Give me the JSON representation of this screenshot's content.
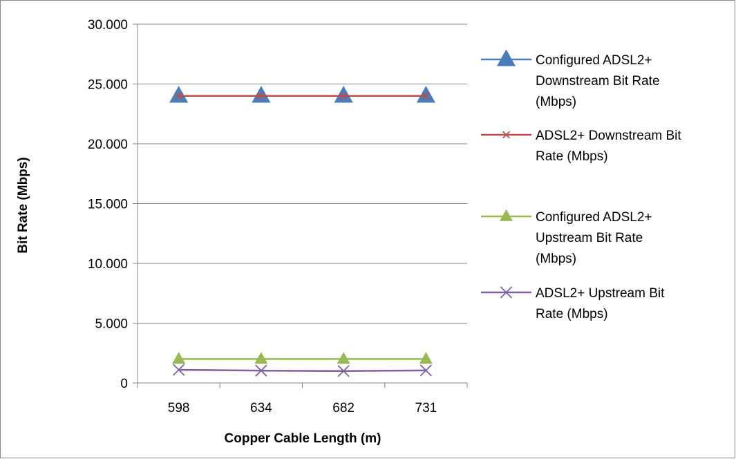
{
  "chart_data": {
    "type": "line",
    "title": "",
    "xlabel": "Copper Cable Length (m)",
    "ylabel": "Bit Rate (Mbps)",
    "categories": [
      "598",
      "634",
      "682",
      "731"
    ],
    "ylim": [
      0,
      30
    ],
    "y_ticks": [
      "0",
      "5.000",
      "10.000",
      "15.000",
      "20.000",
      "25.000",
      "30.000"
    ],
    "y_tick_values": [
      0,
      5,
      10,
      15,
      20,
      25,
      30
    ],
    "grid": "horizontal major gridlines",
    "legend_position": "right",
    "series": [
      {
        "name": "Configured ADSL2+ Downstream Bit Rate (Mbps)",
        "legend_lines": [
          "Configured ADSL2+",
          "Downstream Bit Rate",
          "(Mbps)"
        ],
        "values": [
          24.0,
          24.0,
          24.0,
          24.0
        ],
        "color": "#4a7ebb",
        "marker": "triangle"
      },
      {
        "name": "ADSL2+ Downstream Bit Rate (Mbps)",
        "legend_lines": [
          "ADSL2+ Downstream Bit",
          "Rate (Mbps)"
        ],
        "values": [
          24.0,
          24.0,
          24.0,
          24.0
        ],
        "color": "#be4b48",
        "marker": "x"
      },
      {
        "name": "Configured ADSL2+ Upstream Bit Rate (Mbps)",
        "legend_lines": [
          "Configured ADSL2+",
          "Upstream Bit Rate",
          "(Mbps)"
        ],
        "values": [
          2.0,
          2.0,
          2.0,
          2.0
        ],
        "color": "#98b954",
        "marker": "triangle"
      },
      {
        "name": "ADSL2+ Upstream Bit Rate (Mbps)",
        "legend_lines": [
          "ADSL2+ Upstream Bit",
          "Rate (Mbps)"
        ],
        "values": [
          1.1,
          1.03,
          1.0,
          1.05
        ],
        "color": "#7d60a0",
        "marker": "x"
      }
    ]
  }
}
